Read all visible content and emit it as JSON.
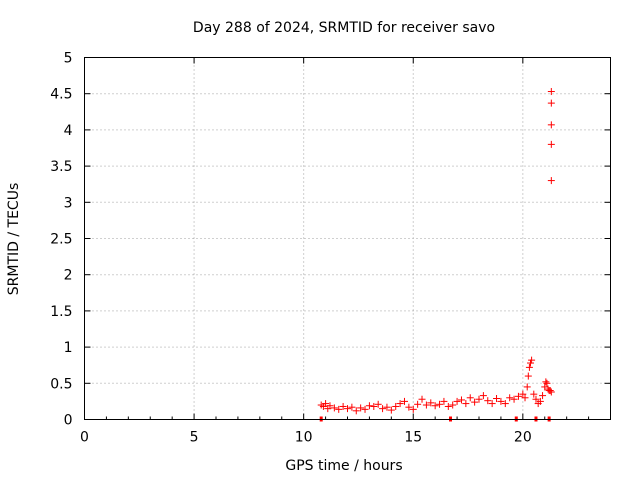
{
  "chart_data": {
    "type": "scatter",
    "title": "Day 288 of 2024, SRMTID for receiver savo",
    "xlabel": "GPS time / hours",
    "ylabel": "SRMTID / TECUs",
    "xlim": [
      0,
      24
    ],
    "ylim": [
      0,
      5
    ],
    "xticks": [
      0,
      5,
      10,
      15,
      20
    ],
    "xtick_labels": [
      "0",
      "5",
      "10",
      "15",
      "20"
    ],
    "yticks": [
      0,
      0.5,
      1,
      1.5,
      2,
      2.5,
      3,
      3.5,
      4,
      4.5,
      5
    ],
    "ytick_labels": [
      "0",
      "0.5",
      "1",
      "1.5",
      "2",
      "2.5",
      "3",
      "3.5",
      "4",
      "4.5",
      "5"
    ],
    "grid": true,
    "marker": "+",
    "color": "#ff0000",
    "series": [
      {
        "name": "SRMTID",
        "x": [
          10.8,
          10.9,
          11.0,
          11.1,
          11.2,
          11.4,
          11.6,
          11.8,
          12.0,
          12.2,
          12.4,
          12.6,
          12.8,
          13.0,
          13.2,
          13.4,
          13.6,
          13.8,
          14.0,
          14.2,
          14.4,
          14.6,
          14.8,
          15.0,
          15.2,
          15.4,
          15.6,
          15.8,
          16.0,
          16.2,
          16.4,
          16.6,
          16.8,
          17.0,
          17.2,
          17.4,
          17.6,
          17.8,
          18.0,
          18.2,
          18.4,
          18.6,
          18.8,
          19.0,
          19.2,
          19.4,
          19.6,
          19.8,
          20.0,
          20.1,
          20.2,
          20.25,
          20.3,
          20.35,
          20.4,
          20.5,
          20.6,
          20.7,
          20.8,
          20.9,
          21.0,
          21.05,
          21.1,
          21.15,
          21.2,
          21.25,
          21.3,
          21.3,
          21.3,
          21.3,
          21.3,
          21.3
        ],
        "y": [
          0.2,
          0.18,
          0.22,
          0.15,
          0.19,
          0.16,
          0.14,
          0.18,
          0.15,
          0.17,
          0.12,
          0.16,
          0.14,
          0.19,
          0.18,
          0.21,
          0.15,
          0.17,
          0.13,
          0.18,
          0.22,
          0.25,
          0.17,
          0.14,
          0.21,
          0.28,
          0.2,
          0.23,
          0.19,
          0.21,
          0.25,
          0.18,
          0.2,
          0.25,
          0.27,
          0.22,
          0.3,
          0.24,
          0.28,
          0.33,
          0.26,
          0.22,
          0.29,
          0.25,
          0.22,
          0.3,
          0.28,
          0.32,
          0.35,
          0.3,
          0.45,
          0.6,
          0.72,
          0.78,
          0.82,
          0.35,
          0.28,
          0.22,
          0.25,
          0.33,
          0.45,
          0.52,
          0.5,
          0.42,
          0.4,
          0.4,
          3.3,
          3.8,
          4.07,
          4.37,
          4.53,
          0.38
        ]
      }
    ],
    "baseline_marks_x": [
      10.8,
      16.7,
      19.7,
      20.6,
      21.2
    ]
  }
}
